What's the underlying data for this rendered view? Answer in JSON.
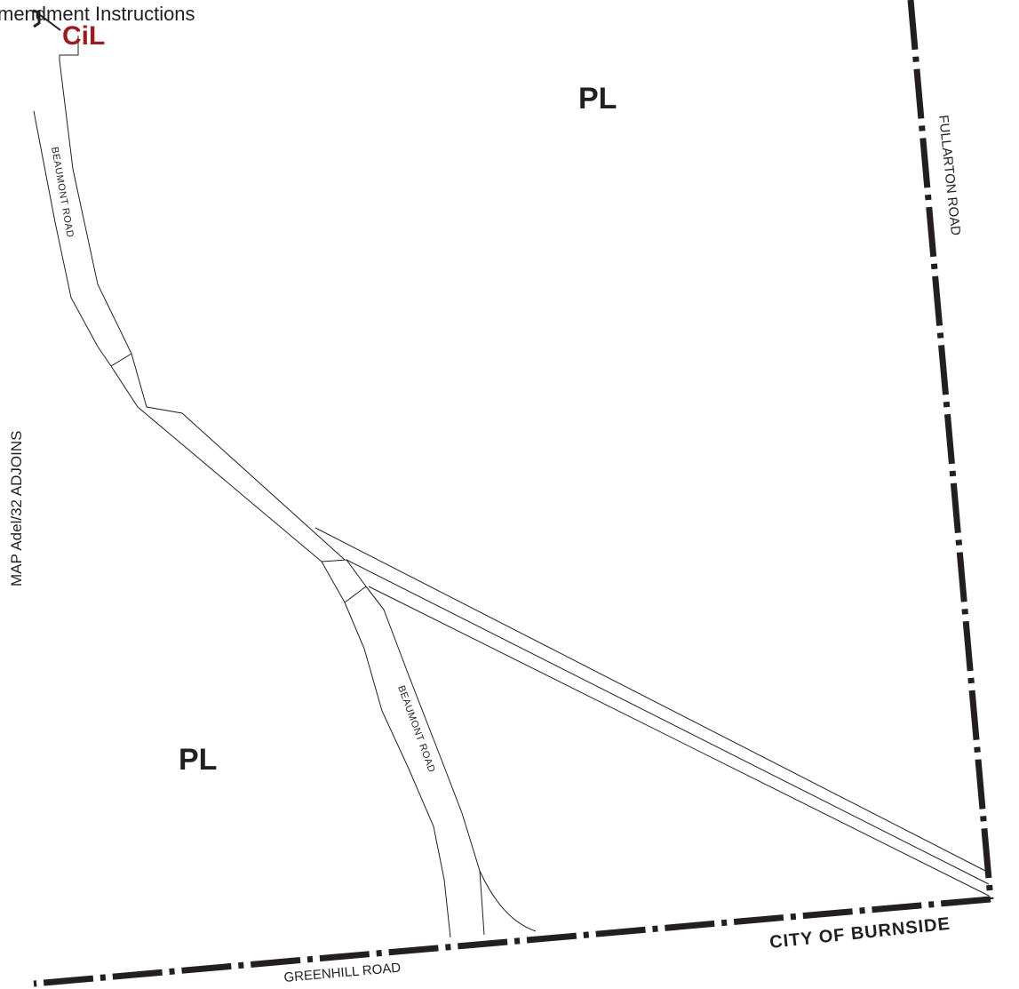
{
  "header": {
    "amendment_text": "mendment Instructions"
  },
  "zones": {
    "cil": {
      "label": "CiL",
      "color": "#9e1b20"
    },
    "pl_north": {
      "label": "PL"
    },
    "pl_south": {
      "label": "PL"
    }
  },
  "roads": {
    "beaumont_north": "BEAUMONT   ROAD",
    "beaumont_south": "BEAUMONT   ROAD",
    "fullarton": "FULLARTON    ROAD",
    "greenhill": "GREENHILL    ROAD"
  },
  "council": {
    "label": "CITY   OF   BURNSIDE"
  },
  "adjoin": {
    "label": "MAP Adel/32 ADJOINS"
  },
  "colors": {
    "line": "#231f20",
    "background": "#ffffff"
  }
}
